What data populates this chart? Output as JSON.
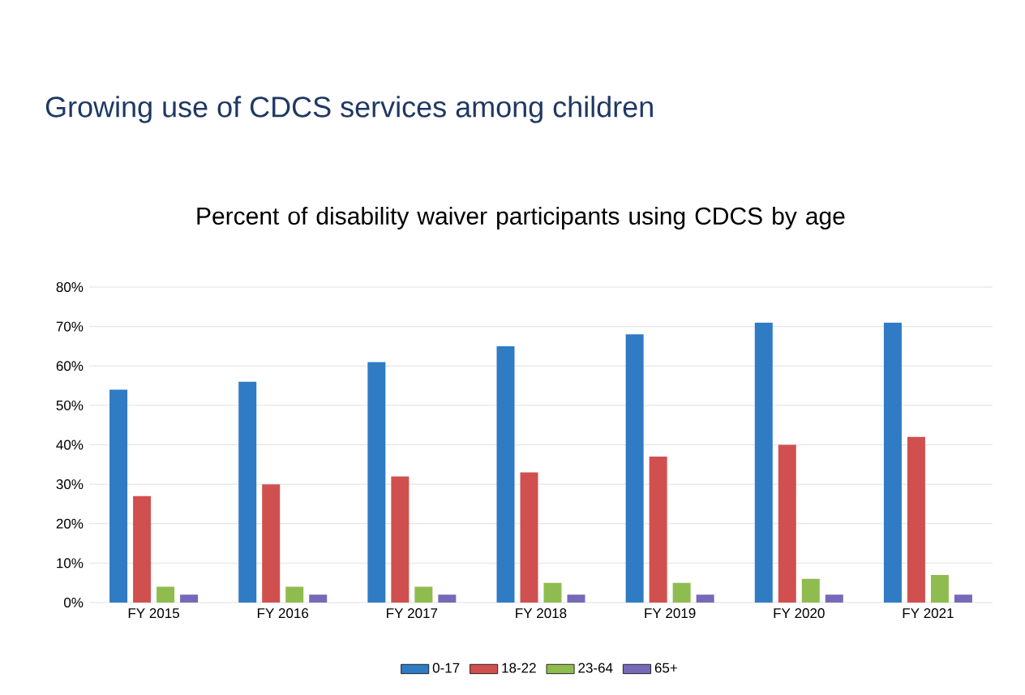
{
  "chart_data": {
    "type": "bar",
    "title": "Growing use of CDCS services among children",
    "subtitle": "Percent of disability waiver participants using CDCS by age",
    "categories": [
      "FY 2015",
      "FY 2016",
      "FY 2017",
      "FY 2018",
      "FY 2019",
      "FY 2020",
      "FY 2021"
    ],
    "series": [
      {
        "name": "0-17",
        "color": "#2f7bc4",
        "values": [
          54,
          56,
          61,
          65,
          68,
          71,
          71
        ]
      },
      {
        "name": "18-22",
        "color": "#d0504f",
        "values": [
          27,
          30,
          32,
          33,
          37,
          40,
          42
        ]
      },
      {
        "name": "23-64",
        "color": "#8fbc4f",
        "values": [
          4,
          4,
          4,
          5,
          5,
          6,
          7
        ]
      },
      {
        "name": "65+",
        "color": "#7669b8",
        "values": [
          2,
          2,
          2,
          2,
          2,
          2,
          2
        ]
      }
    ],
    "ylim": [
      0,
      80
    ],
    "yticks": [
      {
        "value": 0,
        "label": "0%"
      },
      {
        "value": 10,
        "label": "10%"
      },
      {
        "value": 20,
        "label": "20%"
      },
      {
        "value": 30,
        "label": "30%"
      },
      {
        "value": 40,
        "label": "40%"
      },
      {
        "value": 50,
        "label": "50%"
      },
      {
        "value": 60,
        "label": "60%"
      },
      {
        "value": 70,
        "label": "70%"
      },
      {
        "value": 80,
        "label": "80%"
      }
    ],
    "grid": "y",
    "legend": "bottom"
  }
}
